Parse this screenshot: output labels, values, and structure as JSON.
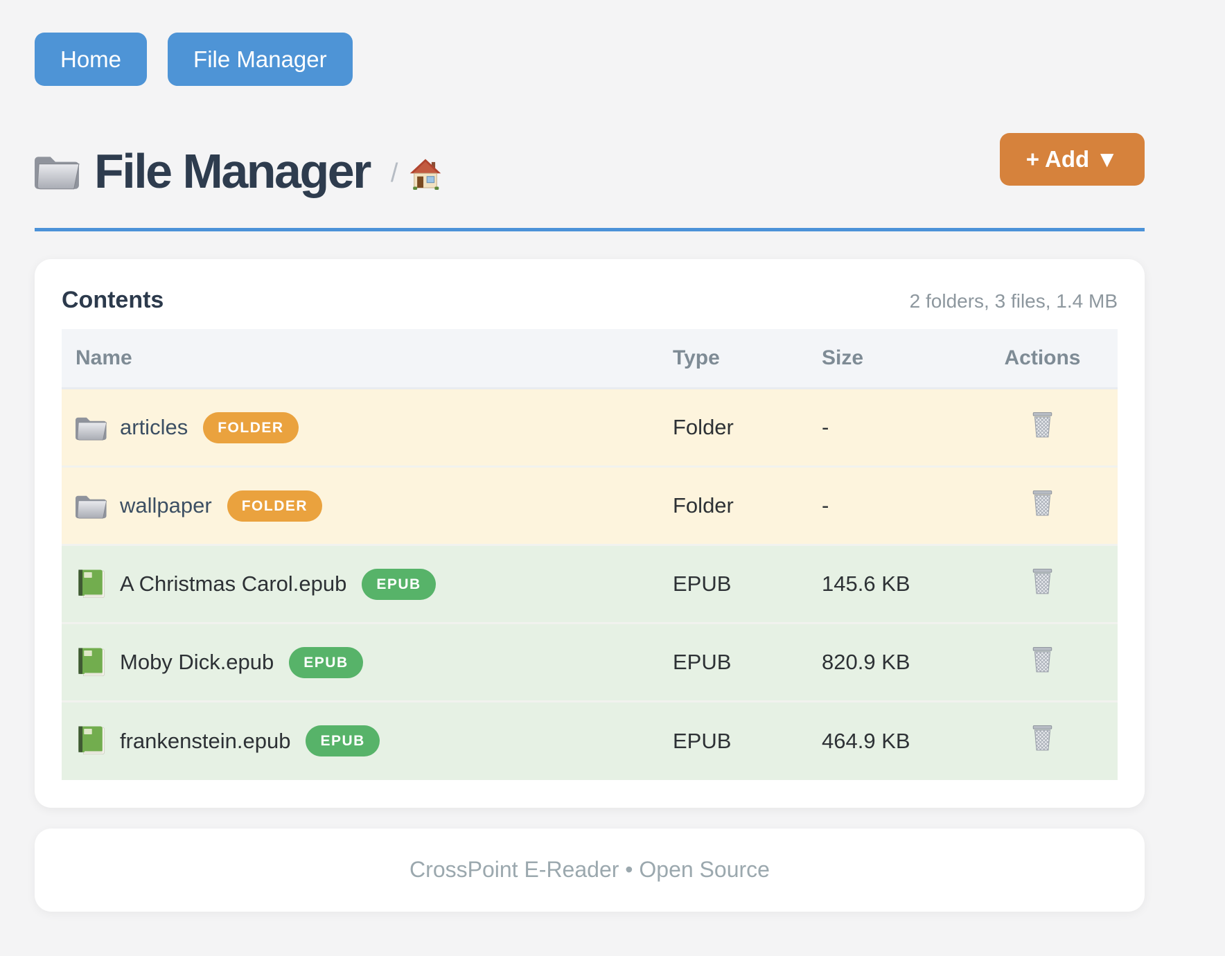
{
  "nav": {
    "buttons": [
      {
        "label": "Home"
      },
      {
        "label": "File Manager"
      }
    ]
  },
  "header": {
    "title": "File Manager",
    "breadcrumb_separator": "/",
    "add_button_label": "+ Add ▼"
  },
  "content": {
    "panel_title": "Contents",
    "summary": "2 folders, 3 files, 1.4 MB",
    "table": {
      "columns": [
        "Name",
        "Type",
        "Size",
        "Actions"
      ],
      "rows": [
        {
          "name": "articles",
          "badge": "FOLDER",
          "kind": "folder",
          "type": "Folder",
          "size": "-"
        },
        {
          "name": "wallpaper",
          "badge": "FOLDER",
          "kind": "folder",
          "type": "Folder",
          "size": "-"
        },
        {
          "name": "A Christmas Carol.epub",
          "badge": "EPUB",
          "kind": "epub",
          "type": "EPUB",
          "size": "145.6 KB"
        },
        {
          "name": "Moby Dick.epub",
          "badge": "EPUB",
          "kind": "epub",
          "type": "EPUB",
          "size": "820.9 KB"
        },
        {
          "name": "frankenstein.epub",
          "badge": "EPUB",
          "kind": "epub",
          "type": "EPUB",
          "size": "464.9 KB"
        }
      ]
    }
  },
  "footer": {
    "text": "CrossPoint E-Reader • Open Source"
  },
  "icons": {
    "title": "folder-icon",
    "breadcrumb": "house-icon",
    "folder_row": "folder-icon",
    "epub_row": "green-book-icon",
    "actions": "trash-icon",
    "add_caret": "caret-down-icon"
  },
  "colors": {
    "accent_blue": "#4b92d8",
    "add_orange": "#d6823c",
    "badge_orange": "#eaa23e",
    "badge_green": "#57b369",
    "folder_row_bg": "#fdf4dd",
    "epub_row_bg": "#e6f1e4",
    "page_bg": "#f4f4f5"
  }
}
